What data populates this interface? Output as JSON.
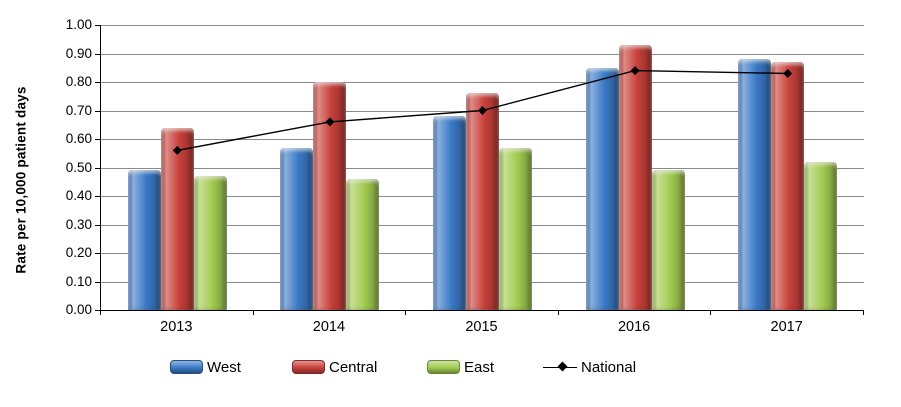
{
  "chart_data": {
    "type": "bar",
    "subtype": "grouped-bars-with-line-overlay",
    "title": "",
    "xlabel": "",
    "ylabel": "Rate per 10,000 patient days",
    "categories": [
      "2013",
      "2014",
      "2015",
      "2016",
      "2017"
    ],
    "series": [
      {
        "name": "West",
        "type": "bar",
        "color": "#3b7ac7",
        "values": [
          0.49,
          0.57,
          0.68,
          0.85,
          0.88
        ]
      },
      {
        "name": "Central",
        "type": "bar",
        "color": "#c8403a",
        "values": [
          0.64,
          0.8,
          0.76,
          0.93,
          0.87
        ]
      },
      {
        "name": "East",
        "type": "bar",
        "color": "#a3cc52",
        "values": [
          0.47,
          0.46,
          0.57,
          0.49,
          0.52
        ]
      },
      {
        "name": "National",
        "type": "line",
        "color": "#000000",
        "values": [
          0.56,
          0.66,
          0.7,
          0.84,
          0.83
        ]
      }
    ],
    "ylim": [
      0.0,
      1.0
    ],
    "ytick_step": 0.1,
    "ytick_labels": [
      "0.00",
      "0.10",
      "0.20",
      "0.30",
      "0.40",
      "0.50",
      "0.60",
      "0.70",
      "0.80",
      "0.90",
      "1.00"
    ],
    "grid": true,
    "gridline_color": "#8a8a8a",
    "axis_color": "#000000",
    "background_color": "#ffffff",
    "legend_position": "bottom",
    "legend_labels": [
      "West",
      "Central",
      "East",
      "National"
    ]
  }
}
